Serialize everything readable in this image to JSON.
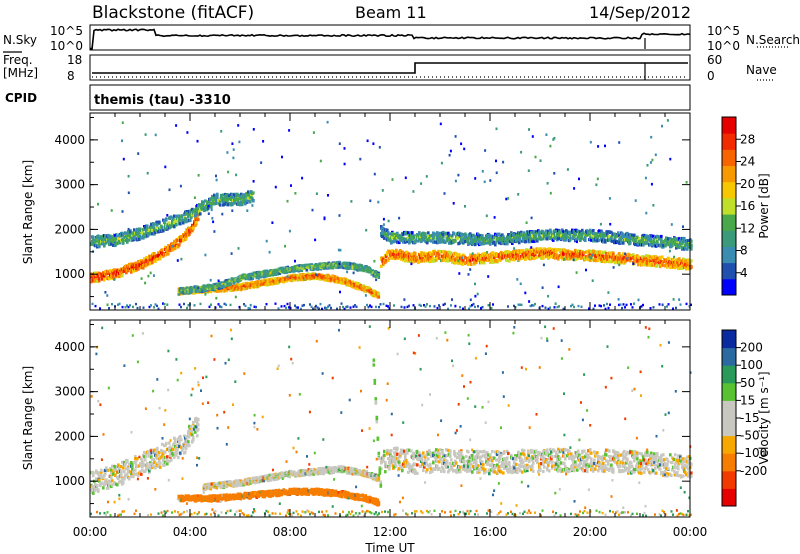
{
  "header": {
    "station": "Blackstone (fitACF)",
    "beam": "Beam 11",
    "date": "14/Sep/2012"
  },
  "panels": {
    "nsky": {
      "left_label": "N.Sky",
      "right_label": "N.Search",
      "left_ticks": [
        "10^5",
        "10^0"
      ],
      "right_ticks": [
        "10^5",
        "10^0"
      ]
    },
    "freq": {
      "left_label_top": "Freq.",
      "left_label_bottom": "[MHz]",
      "right_label": "Nave",
      "left_ticks": [
        "18",
        "8"
      ],
      "right_ticks": [
        "60",
        "0"
      ]
    },
    "cpid": {
      "label": "CPID",
      "text": "themis (tau) -3310"
    }
  },
  "axes": {
    "ylabel": "Slant Range [km]",
    "xlabel": "Time UT",
    "xticks": [
      "00:00",
      "04:00",
      "08:00",
      "12:00",
      "16:00",
      "20:00",
      "00:00"
    ],
    "yticks": [
      "1000",
      "2000",
      "3000",
      "4000"
    ]
  },
  "colors": {
    "power": [
      "#0000ff",
      "#1f4faf",
      "#3a8cb0",
      "#3a9a7a",
      "#49a84a",
      "#bfdf2a",
      "#f7c800",
      "#f79a00",
      "#f76400",
      "#f22a00",
      "#e60000"
    ],
    "velocity": [
      "#e60000",
      "#f23a00",
      "#f77d00",
      "#f7a800",
      "#c8c8c0",
      "#c8c8c0",
      "#59c233",
      "#2a9a5a",
      "#2a6aa0",
      "#0a2aa0"
    ]
  },
  "chart_data": [
    {
      "type": "heatmap",
      "title": "Power",
      "colorbar_label": "Power [dB]",
      "colorbar_ticks": [
        "4",
        "8",
        "12",
        "16",
        "20",
        "24",
        "28"
      ],
      "vmin": 0,
      "vmax": 32,
      "xlim": [
        0,
        24
      ],
      "ylim": [
        200,
        4600
      ],
      "echo_bands": [
        {
          "times": [
            0,
            1,
            2,
            3,
            3.5,
            4,
            4.3
          ],
          "ranges": [
            950,
            1050,
            1250,
            1550,
            1750,
            2050,
            2350
          ],
          "width": 200,
          "power": 24
        },
        {
          "times": [
            0,
            1,
            2,
            3,
            4,
            4.5,
            5,
            6,
            6.5
          ],
          "ranges": [
            1750,
            1800,
            1950,
            2150,
            2350,
            2550,
            2700,
            2700,
            2800
          ],
          "width": 250,
          "power": 10
        },
        {
          "times": [
            3.5,
            5,
            6,
            7,
            8,
            9,
            10,
            11,
            11.5
          ],
          "ranges": [
            650,
            700,
            750,
            850,
            950,
            1000,
            900,
            700,
            550
          ],
          "width": 120,
          "power": 22
        },
        {
          "times": [
            3.5,
            5,
            6,
            7,
            8,
            9,
            10,
            11,
            11.5
          ],
          "ranges": [
            650,
            750,
            950,
            1050,
            1150,
            1200,
            1250,
            1150,
            1000
          ],
          "width": 120,
          "power": 11
        },
        {
          "times": [
            11.6,
            12,
            13,
            14,
            15,
            16,
            18,
            20,
            22,
            24
          ],
          "ranges": [
            1300,
            1500,
            1400,
            1450,
            1350,
            1400,
            1500,
            1450,
            1350,
            1250
          ],
          "width": 220,
          "power": 22
        },
        {
          "times": [
            11.6,
            12,
            14,
            16,
            18,
            20,
            22,
            24
          ],
          "ranges": [
            2000,
            1850,
            1850,
            1800,
            1900,
            1900,
            1800,
            1700
          ],
          "width": 240,
          "power": 9
        }
      ]
    },
    {
      "type": "heatmap",
      "title": "Velocity",
      "colorbar_label": "Velocity [m s⁻¹]",
      "colorbar_ticks": [
        "200",
        "100",
        "50",
        "15",
        "-15",
        "-50",
        "-100",
        "-200"
      ],
      "vmin": -250,
      "vmax": 250,
      "xlim": [
        0,
        24
      ],
      "ylim": [
        200,
        4600
      ],
      "echo_bands": [
        {
          "times": [
            0,
            1,
            2,
            3,
            3.5,
            4,
            4.3
          ],
          "ranges": [
            1000,
            1150,
            1400,
            1650,
            1800,
            2050,
            2300
          ],
          "width": 500,
          "velocity": 0
        },
        {
          "times": [
            3.5,
            5,
            6,
            7,
            8,
            9,
            10,
            11,
            11.5
          ],
          "ranges": [
            650,
            650,
            700,
            750,
            800,
            800,
            750,
            650,
            550
          ],
          "width": 120,
          "velocity": -70
        },
        {
          "times": [
            4.5,
            6,
            7,
            8,
            9,
            10,
            11,
            11.5
          ],
          "ranges": [
            900,
            1000,
            1100,
            1200,
            1250,
            1300,
            1200,
            1100
          ],
          "width": 120,
          "velocity": 0
        },
        {
          "times": [
            11.6,
            12,
            13,
            14,
            16,
            18,
            20,
            22,
            24
          ],
          "ranges": [
            1450,
            1550,
            1450,
            1500,
            1450,
            1500,
            1500,
            1450,
            1350
          ],
          "width": 500,
          "velocity": 0
        },
        {
          "times": [
            11.3,
            11.4,
            11.5,
            11.6
          ],
          "ranges": [
            3700,
            2600,
            1600,
            800
          ],
          "width": 140,
          "velocity": 30
        }
      ]
    }
  ]
}
